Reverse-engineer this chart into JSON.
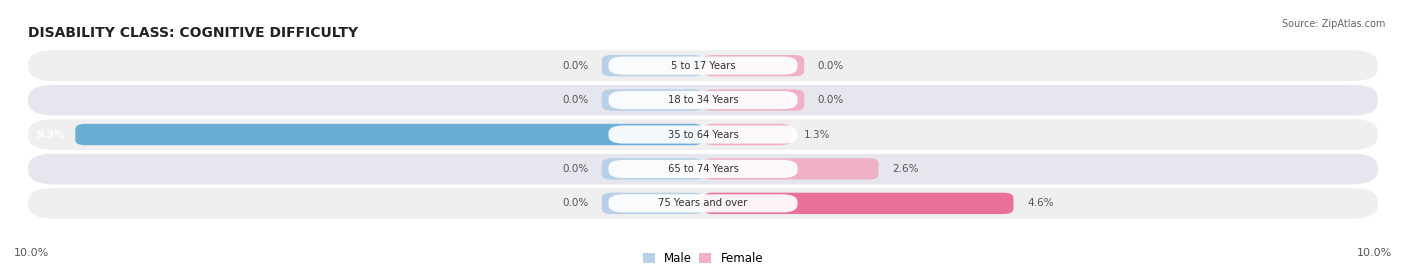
{
  "title": "DISABILITY CLASS: COGNITIVE DIFFICULTY",
  "source": "Source: ZipAtlas.com",
  "categories": [
    "5 to 17 Years",
    "18 to 34 Years",
    "35 to 64 Years",
    "65 to 74 Years",
    "75 Years and over"
  ],
  "male_values": [
    0.0,
    0.0,
    9.3,
    0.0,
    0.0
  ],
  "female_values": [
    0.0,
    0.0,
    1.3,
    2.6,
    4.6
  ],
  "male_color_light": "#b8d0e8",
  "male_color_full": "#6aaed6",
  "female_color_light": "#f0b0c8",
  "female_color_full": "#e8709a",
  "row_bg_odd": "#efefef",
  "row_bg_even": "#e6e6ee",
  "x_min": -10.0,
  "x_max": 10.0,
  "axis_label_left": "10.0%",
  "axis_label_right": "10.0%",
  "legend_male": "Male",
  "legend_female": "Female",
  "title_fontsize": 10,
  "small_bar_extent": 1.5
}
